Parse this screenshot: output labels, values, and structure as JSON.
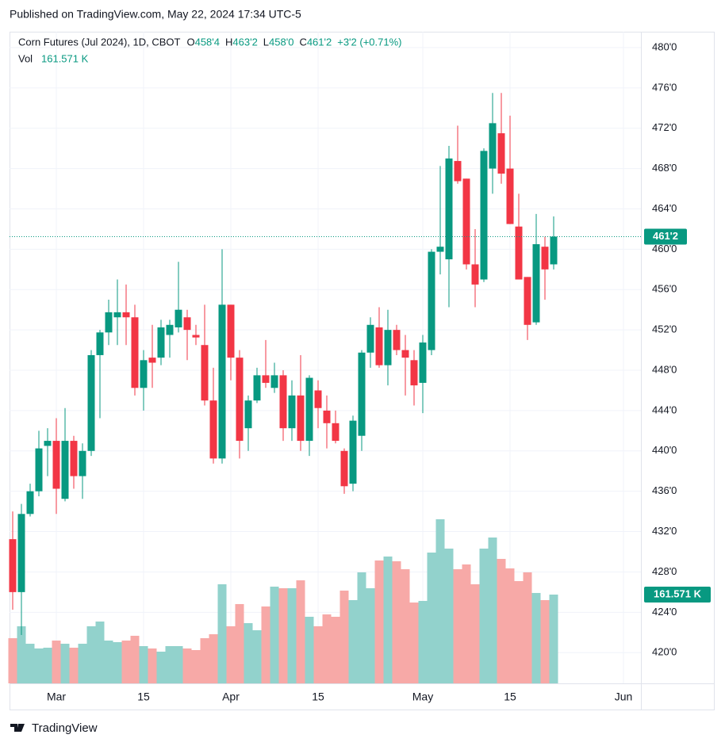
{
  "published": "Published on TradingView.com, May 22, 2024 17:34 UTC-5",
  "brand": "TradingView",
  "chart_data": {
    "type": "candlestick",
    "title": "Corn Futures (Jul 2024), 1D, CBOT",
    "legend_items": [
      {
        "key": "O",
        "value": "458'4"
      },
      {
        "key": "H",
        "value": "463'2"
      },
      {
        "key": "L",
        "value": "458'0"
      },
      {
        "key": "C",
        "value": "461'2"
      }
    ],
    "change": "+3'2 (+0.71%)",
    "volume_title": "Vol",
    "last_volume_label": "161.571 K",
    "last_price_label": "461'2",
    "up_color": "#089981",
    "down_color": "#f23645",
    "volume_up_color": "#92d2cc",
    "volume_down_color": "#f7a9a7",
    "grid": true,
    "x": [
      "2024-02-23",
      "2024-02-26",
      "2024-02-27",
      "2024-02-28",
      "2024-02-29",
      "2024-03-01",
      "2024-03-04",
      "2024-03-05",
      "2024-03-06",
      "2024-03-07",
      "2024-03-08",
      "2024-03-11",
      "2024-03-12",
      "2024-03-13",
      "2024-03-14",
      "2024-03-15",
      "2024-03-18",
      "2024-03-19",
      "2024-03-20",
      "2024-03-21",
      "2024-03-22",
      "2024-03-25",
      "2024-03-26",
      "2024-03-27",
      "2024-03-28",
      "2024-04-01",
      "2024-04-02",
      "2024-04-03",
      "2024-04-04",
      "2024-04-05",
      "2024-04-08",
      "2024-04-09",
      "2024-04-10",
      "2024-04-11",
      "2024-04-12",
      "2024-04-15",
      "2024-04-16",
      "2024-04-17",
      "2024-04-18",
      "2024-04-19",
      "2024-04-22",
      "2024-04-23",
      "2024-04-24",
      "2024-04-25",
      "2024-04-26",
      "2024-04-29",
      "2024-04-30",
      "2024-05-01",
      "2024-05-02",
      "2024-05-03",
      "2024-05-06",
      "2024-05-07",
      "2024-05-08",
      "2024-05-09",
      "2024-05-10",
      "2024-05-13",
      "2024-05-14",
      "2024-05-15",
      "2024-05-16",
      "2024-05-17",
      "2024-05-20",
      "2024-05-21",
      "2024-05-22"
    ],
    "open": [
      431.25,
      426,
      433.75,
      436,
      440.5,
      441,
      435.25,
      441,
      437.5,
      440,
      449.5,
      451.75,
      453.25,
      453.75,
      453.25,
      446.25,
      449.25,
      449.25,
      451.5,
      452.25,
      453.25,
      451.5,
      450.5,
      445,
      439.25,
      454.5,
      449.25,
      442.25,
      445,
      447.5,
      446.25,
      447.5,
      442.25,
      445.5,
      441,
      446,
      444,
      442.75,
      440,
      436.75,
      441.5,
      449.75,
      452.25,
      448.5,
      452,
      450,
      449,
      446.75,
      450,
      459.75,
      459,
      468.75,
      467,
      458.5,
      457,
      468,
      471.5,
      468,
      462.25,
      457.25,
      452.75,
      460.25,
      458.5
    ],
    "high": [
      434,
      434.75,
      436.75,
      442,
      442.25,
      443.25,
      444.25,
      441.5,
      440.75,
      450,
      452,
      455,
      457,
      456.5,
      454.5,
      450,
      452.5,
      453,
      453,
      458.75,
      454,
      452.5,
      454.5,
      448.25,
      460,
      454.5,
      450,
      445.5,
      448.25,
      451,
      448.75,
      448,
      447,
      449.5,
      447.5,
      447,
      445.5,
      444,
      440.25,
      443.5,
      450,
      453.25,
      454.25,
      454,
      452.5,
      451.5,
      450,
      451.5,
      460,
      468.25,
      470.25,
      472.25,
      467,
      462,
      470,
      475.5,
      475.5,
      473.25,
      465.5,
      457.25,
      463.5,
      461.25,
      463.25
    ],
    "low": [
      424.25,
      421.75,
      433.5,
      435.5,
      437.5,
      433.75,
      435,
      436.25,
      435.25,
      439.5,
      443.25,
      450.5,
      450.5,
      450.5,
      445.5,
      444,
      446.25,
      448.5,
      449.25,
      451.75,
      449,
      450.5,
      444.5,
      438.75,
      438.75,
      447,
      439.25,
      440,
      444.75,
      446.25,
      445.75,
      441,
      441,
      440,
      439.5,
      442.25,
      440.25,
      440.75,
      435.75,
      436,
      440,
      448.25,
      448.25,
      446.5,
      449.5,
      445.5,
      444.5,
      443.75,
      449.5,
      457.5,
      454.25,
      466.5,
      458,
      454.25,
      456.75,
      465.5,
      466.5,
      462.5,
      457,
      451,
      452.5,
      455,
      458
    ],
    "close": [
      426,
      433.75,
      436,
      440.25,
      441,
      436.25,
      441,
      437.5,
      440,
      449.5,
      451.75,
      453.75,
      453.75,
      453.25,
      446.25,
      449,
      448.75,
      452.25,
      452.5,
      454,
      452,
      451.25,
      445,
      439.25,
      454.5,
      449.25,
      441,
      445,
      447.5,
      446.75,
      447.5,
      442.25,
      445.5,
      441,
      447.25,
      444.25,
      442.75,
      441,
      436.5,
      443,
      449.75,
      452.5,
      448.5,
      452,
      450,
      449.25,
      446.5,
      450.75,
      459.75,
      460.25,
      469,
      466.75,
      458.5,
      456.5,
      469.75,
      472.5,
      467.5,
      462.5,
      457,
      452.5,
      460.5,
      458,
      461.25
    ],
    "volume": [
      82200,
      103900,
      72100,
      63500,
      64900,
      77900,
      72100,
      64900,
      72100,
      103900,
      112500,
      77900,
      75000,
      77900,
      86600,
      67800,
      63500,
      57700,
      67800,
      67800,
      63500,
      60600,
      82200,
      89400,
      180300,
      103900,
      144300,
      109600,
      96700,
      139900,
      176000,
      173100,
      173100,
      187500,
      121200,
      103900,
      125500,
      121200,
      168800,
      151500,
      202000,
      173100,
      223600,
      230800,
      222200,
      207700,
      147100,
      150000,
      238000,
      298600,
      245200,
      207700,
      216400,
      180300,
      245200,
      265400,
      226500,
      209200,
      186100,
      202000,
      164500,
      151500,
      161571
    ],
    "ylim": [
      416.95,
      481.57
    ],
    "yticks": [
      {
        "value": 420,
        "label": "420'0"
      },
      {
        "value": 424,
        "label": "424'0"
      },
      {
        "value": 428,
        "label": "428'0"
      },
      {
        "value": 432,
        "label": "432'0"
      },
      {
        "value": 436,
        "label": "436'0"
      },
      {
        "value": 440,
        "label": "440'0"
      },
      {
        "value": 444,
        "label": "444'0"
      },
      {
        "value": 448,
        "label": "448'0"
      },
      {
        "value": 452,
        "label": "452'0"
      },
      {
        "value": 456,
        "label": "456'0"
      },
      {
        "value": 460,
        "label": "460'0"
      },
      {
        "value": 464,
        "label": "464'0"
      },
      {
        "value": 468,
        "label": "468'0"
      },
      {
        "value": 472,
        "label": "472'0"
      },
      {
        "value": 476,
        "label": "476'0"
      },
      {
        "value": 480,
        "label": "480'0"
      }
    ],
    "xticks": [
      {
        "value": "2024-03-01",
        "label": "Mar"
      },
      {
        "value": "2024-03-15",
        "label": "15"
      },
      {
        "value": "2024-04-01",
        "label": "Apr"
      },
      {
        "value": "2024-04-15",
        "label": "15"
      },
      {
        "value": "2024-05-01",
        "label": "May"
      },
      {
        "value": "2024-05-15",
        "label": "15"
      },
      {
        "value": "2024-06-03",
        "label": "Jun"
      }
    ]
  }
}
